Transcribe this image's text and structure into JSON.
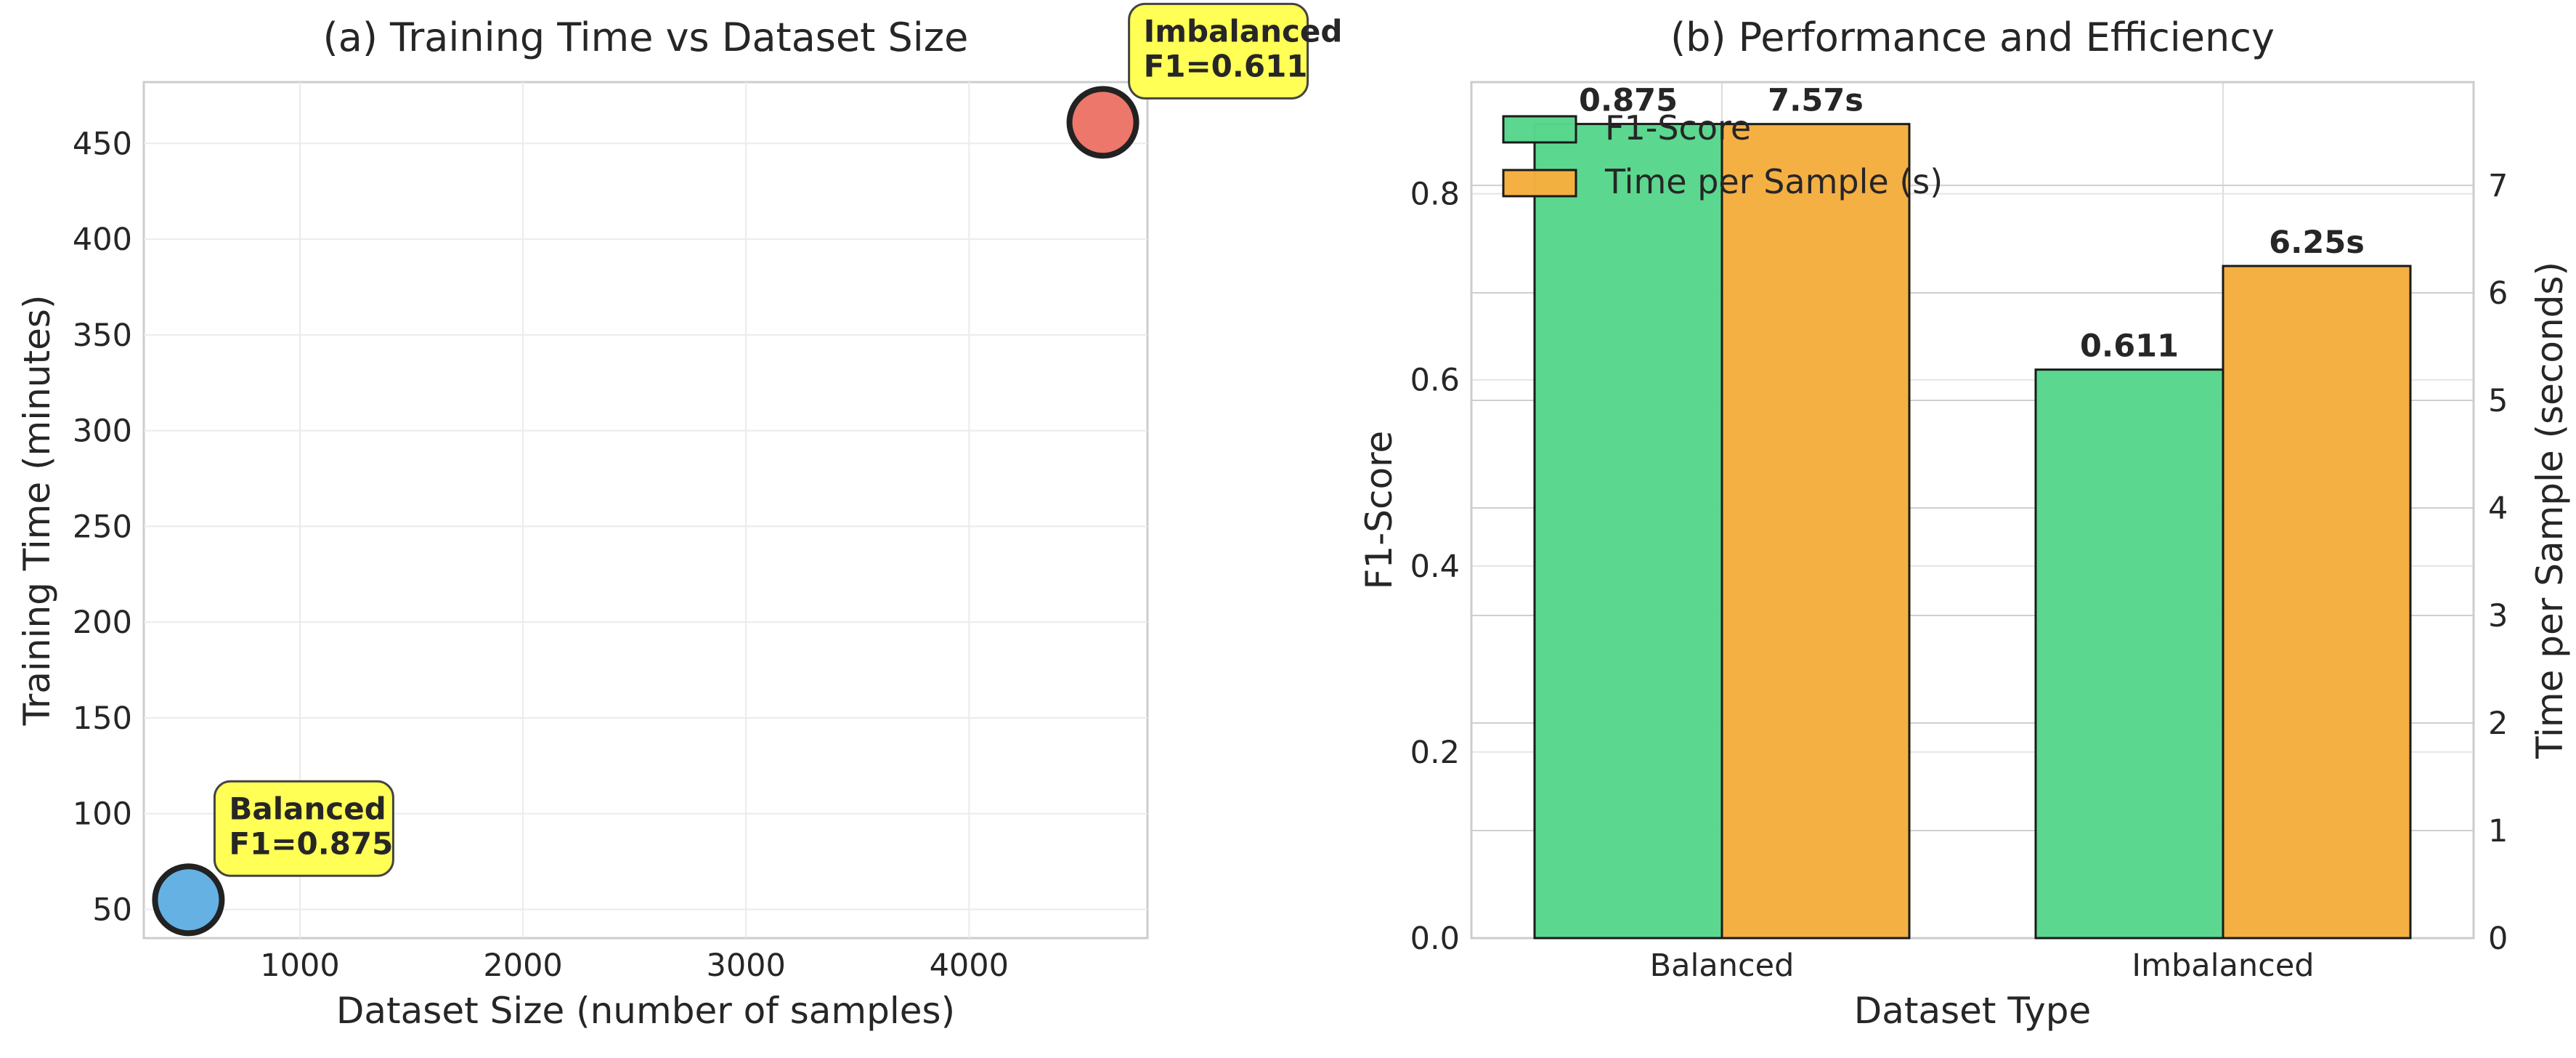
{
  "chart_data": [
    {
      "type": "scatter",
      "title": "(a) Training Time vs Dataset Size",
      "xlabel": "Dataset Size (number of samples)",
      "ylabel": "Training Time (minutes)",
      "xlim": [
        300,
        4800
      ],
      "ylim": [
        35,
        482
      ],
      "xticks": [
        1000,
        2000,
        3000,
        4000
      ],
      "yticks": [
        50,
        100,
        150,
        200,
        250,
        300,
        350,
        400,
        450
      ],
      "grid": true,
      "points": [
        {
          "name": "Balanced",
          "x": 500,
          "y": 55,
          "color": "#5dade2",
          "annotation": [
            "Balanced",
            "F1=0.875"
          ]
        },
        {
          "name": "Imbalanced",
          "x": 4600,
          "y": 461,
          "color": "#ec7063",
          "annotation": [
            "Imbalanced",
            "F1=0.611"
          ]
        }
      ],
      "annotation_style": {
        "fill": "#ffff55",
        "edge": "#444444"
      }
    },
    {
      "type": "bar",
      "title": "(b) Performance and Efficiency",
      "xlabel": "Dataset Type",
      "categories": [
        "Balanced",
        "Imbalanced"
      ],
      "series": [
        {
          "name": "F1-Score",
          "axis": "left",
          "values": [
            0.875,
            0.611
          ],
          "labels": [
            "0.875",
            "0.611"
          ],
          "color": "#58d68d"
        },
        {
          "name": "Time per Sample (s)",
          "axis": "right",
          "values": [
            7.57,
            6.25
          ],
          "labels": [
            "7.57s",
            "6.25s"
          ],
          "color": "#f5ae3f"
        }
      ],
      "ylabel_left": "F1-Score",
      "ylabel_right": "Time per Sample (seconds)",
      "ylabel_left_color": "#2ecc71",
      "ylabel_right_color": "#f39c12",
      "ylim_left": [
        0,
        0.92
      ],
      "ylim_right": [
        0,
        7.96
      ],
      "yticks_left": [
        0.0,
        0.2,
        0.4,
        0.6,
        0.8
      ],
      "yticks_right": [
        0,
        1,
        2,
        3,
        4,
        5,
        6,
        7
      ],
      "legend_position": "upper-left",
      "grid": true
    }
  ]
}
